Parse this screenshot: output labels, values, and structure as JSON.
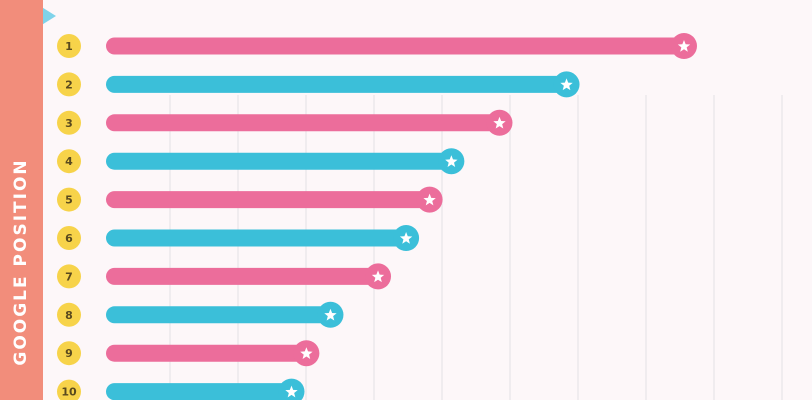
{
  "sidebar": {
    "label": "GOOGLE POSITION"
  },
  "colors": {
    "sidebar": "#f28d7b",
    "background": "#fdf7f9",
    "pink": "#ec6d9b",
    "blue": "#3bbfd9",
    "rank_badge": "#f7d34a",
    "arrow": "#7fd3ea",
    "grid": "#ece8ec"
  },
  "chart_data": {
    "type": "bar",
    "orientation": "horizontal",
    "categories": [
      "1",
      "2",
      "3",
      "4",
      "5",
      "6",
      "7",
      "8",
      "9",
      "10"
    ],
    "values": [
      100,
      79.5,
      67.8,
      59.4,
      55.6,
      51.5,
      46.6,
      38.3,
      34.1,
      31.5
    ],
    "bar_colors": [
      "pink",
      "blue",
      "pink",
      "blue",
      "pink",
      "blue",
      "pink",
      "blue",
      "pink",
      "blue"
    ],
    "end_marker": "star-icon",
    "xlim": [
      0,
      100
    ],
    "grid": true,
    "title": "",
    "xlabel": "",
    "ylabel": "GOOGLE POSITION"
  }
}
